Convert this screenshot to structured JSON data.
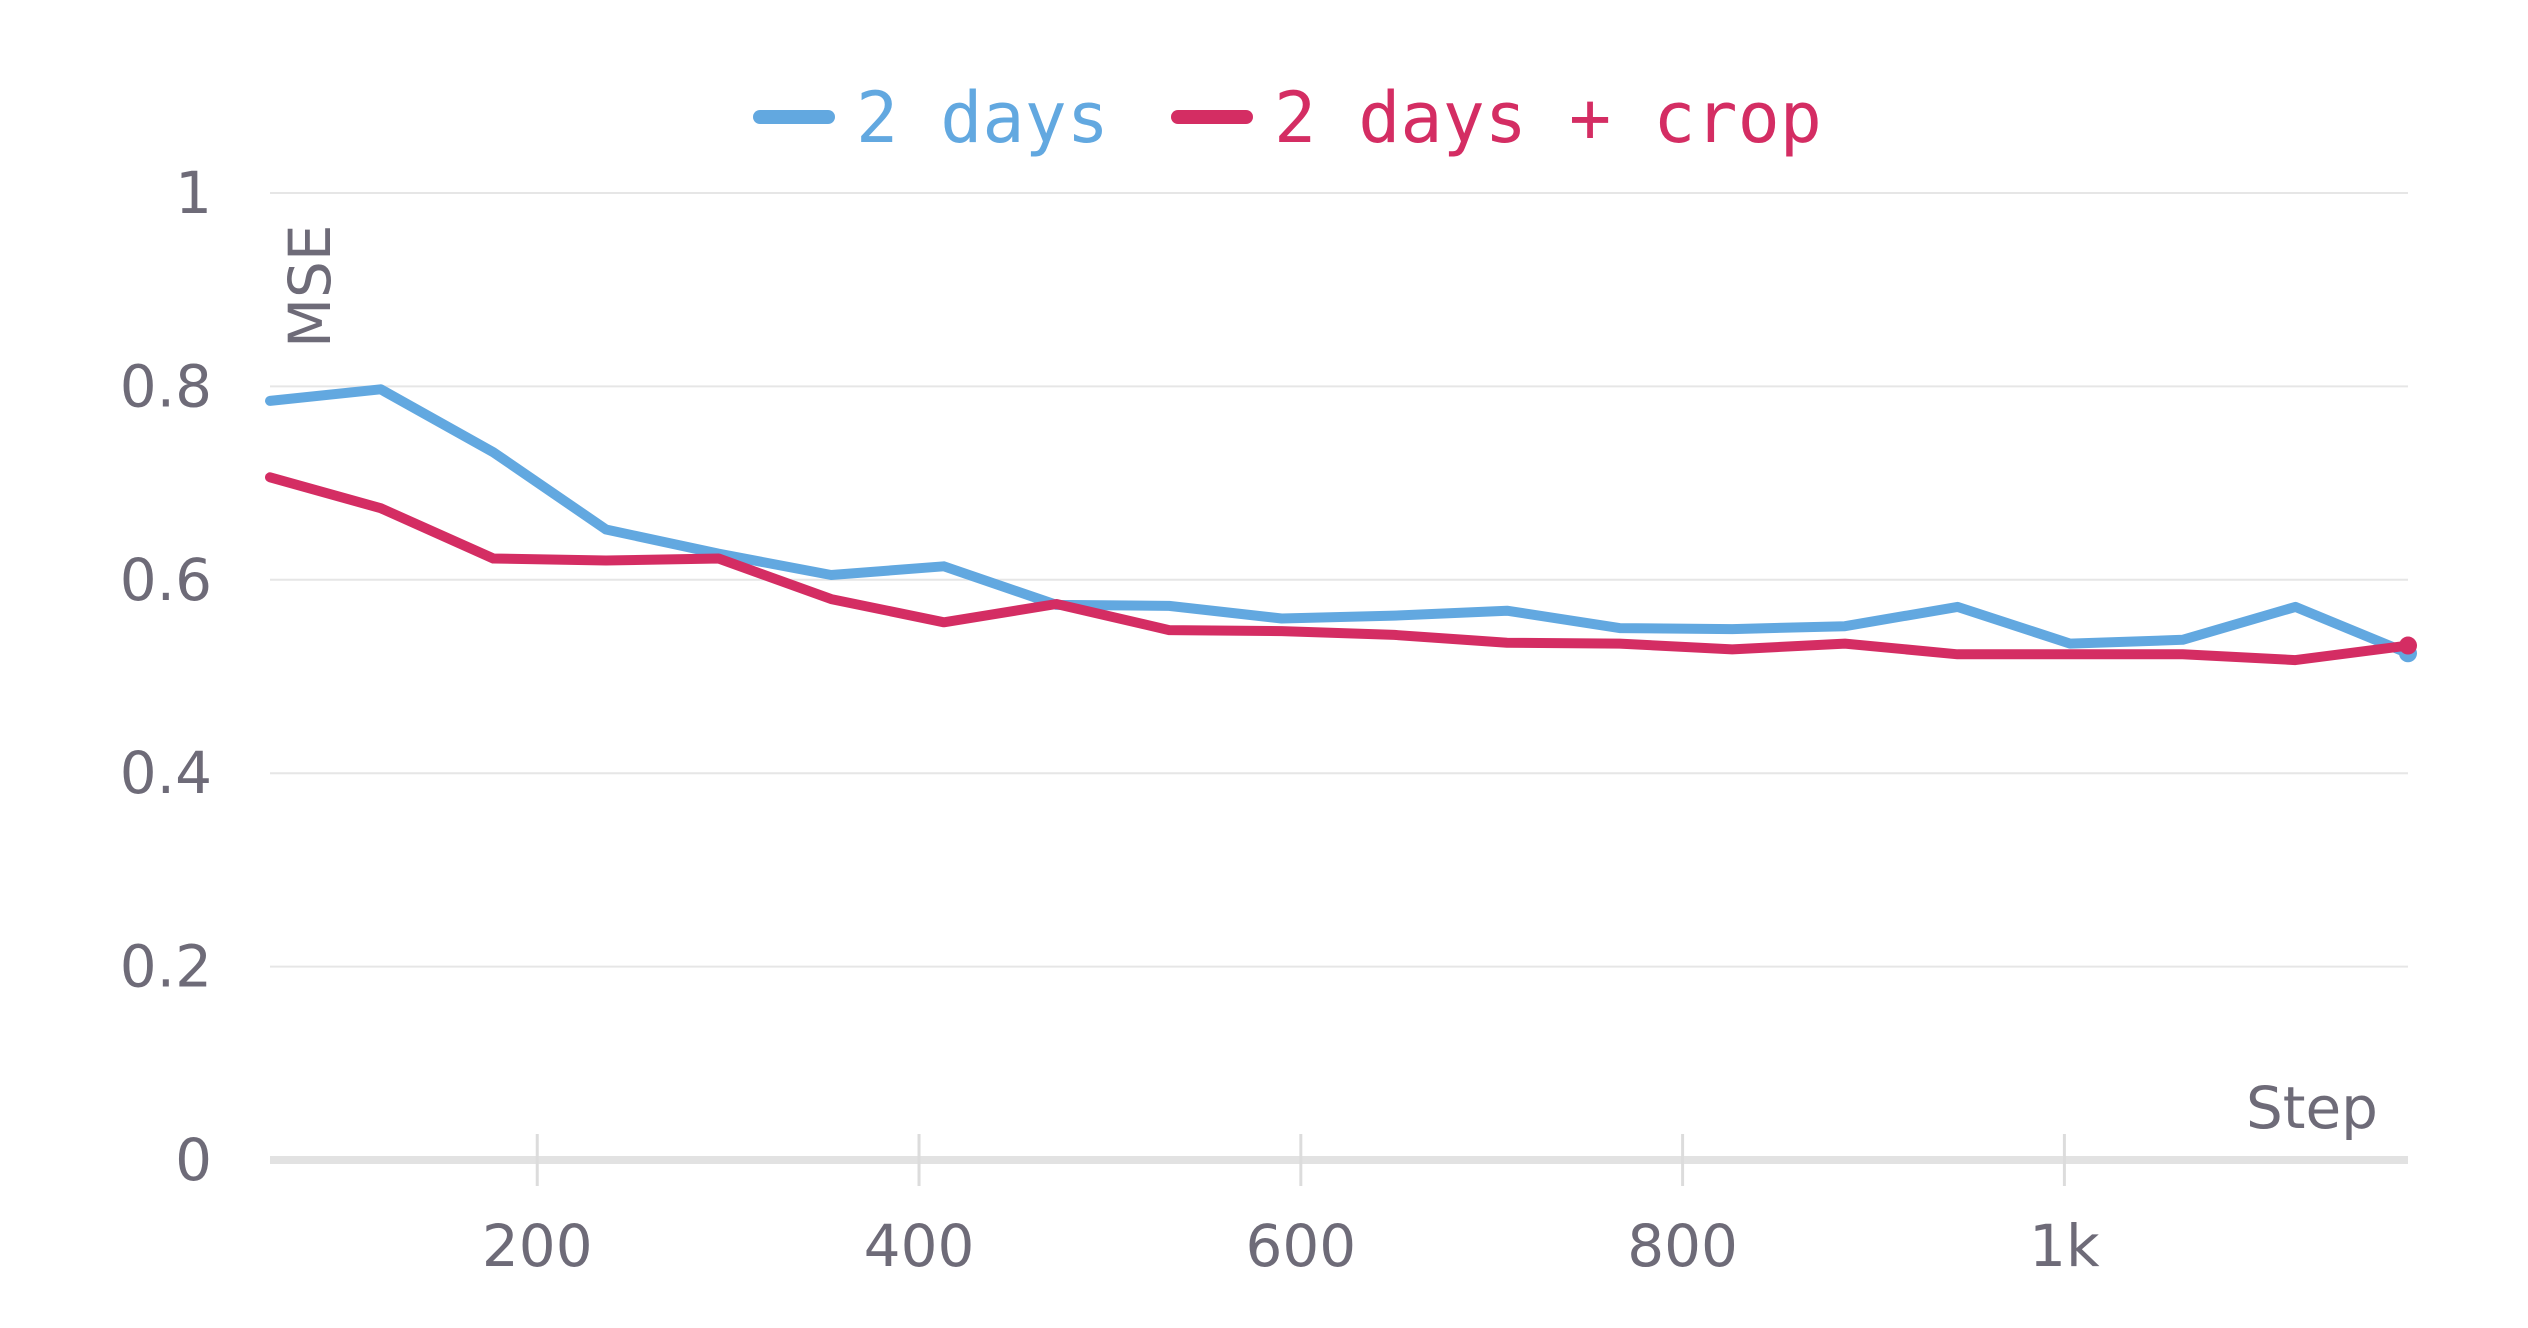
{
  "chart_data": {
    "type": "line",
    "xlabel": "Step",
    "ylabel": "MSE",
    "xlim": [
      60,
      1180
    ],
    "ylim": [
      0,
      1
    ],
    "x_ticks": [
      {
        "value": 200,
        "label": "200"
      },
      {
        "value": 400,
        "label": "400"
      },
      {
        "value": 600,
        "label": "600"
      },
      {
        "value": 800,
        "label": "800"
      },
      {
        "value": 1000,
        "label": "1k"
      }
    ],
    "y_ticks": [
      {
        "value": 0,
        "label": "0"
      },
      {
        "value": 0.2,
        "label": "0.2"
      },
      {
        "value": 0.4,
        "label": "0.4"
      },
      {
        "value": 0.6,
        "label": "0.6"
      },
      {
        "value": 0.8,
        "label": "0.8"
      },
      {
        "value": 1,
        "label": "1"
      }
    ],
    "grid": true,
    "legend_position": "top-center",
    "series": [
      {
        "name": "2 days",
        "color": "#62a8e0",
        "x": [
          60,
          118,
          177,
          236,
          295,
          354,
          413,
          472,
          531,
          590,
          649,
          708,
          767,
          826,
          885,
          944,
          1003,
          1062,
          1121,
          1180
        ],
        "y": [
          0.785,
          0.797,
          0.732,
          0.652,
          0.627,
          0.605,
          0.614,
          0.574,
          0.573,
          0.56,
          0.563,
          0.568,
          0.55,
          0.549,
          0.552,
          0.572,
          0.534,
          0.538,
          0.572,
          0.524
        ]
      },
      {
        "name": "2 days + crop",
        "color": "#d42d63",
        "x": [
          60,
          118,
          177,
          236,
          295,
          354,
          413,
          472,
          531,
          590,
          649,
          708,
          767,
          826,
          885,
          944,
          1003,
          1062,
          1121,
          1180
        ],
        "y": [
          0.706,
          0.674,
          0.622,
          0.62,
          0.622,
          0.58,
          0.556,
          0.575,
          0.548,
          0.547,
          0.543,
          0.535,
          0.534,
          0.528,
          0.534,
          0.523,
          0.523,
          0.523,
          0.517,
          0.532
        ]
      }
    ]
  }
}
